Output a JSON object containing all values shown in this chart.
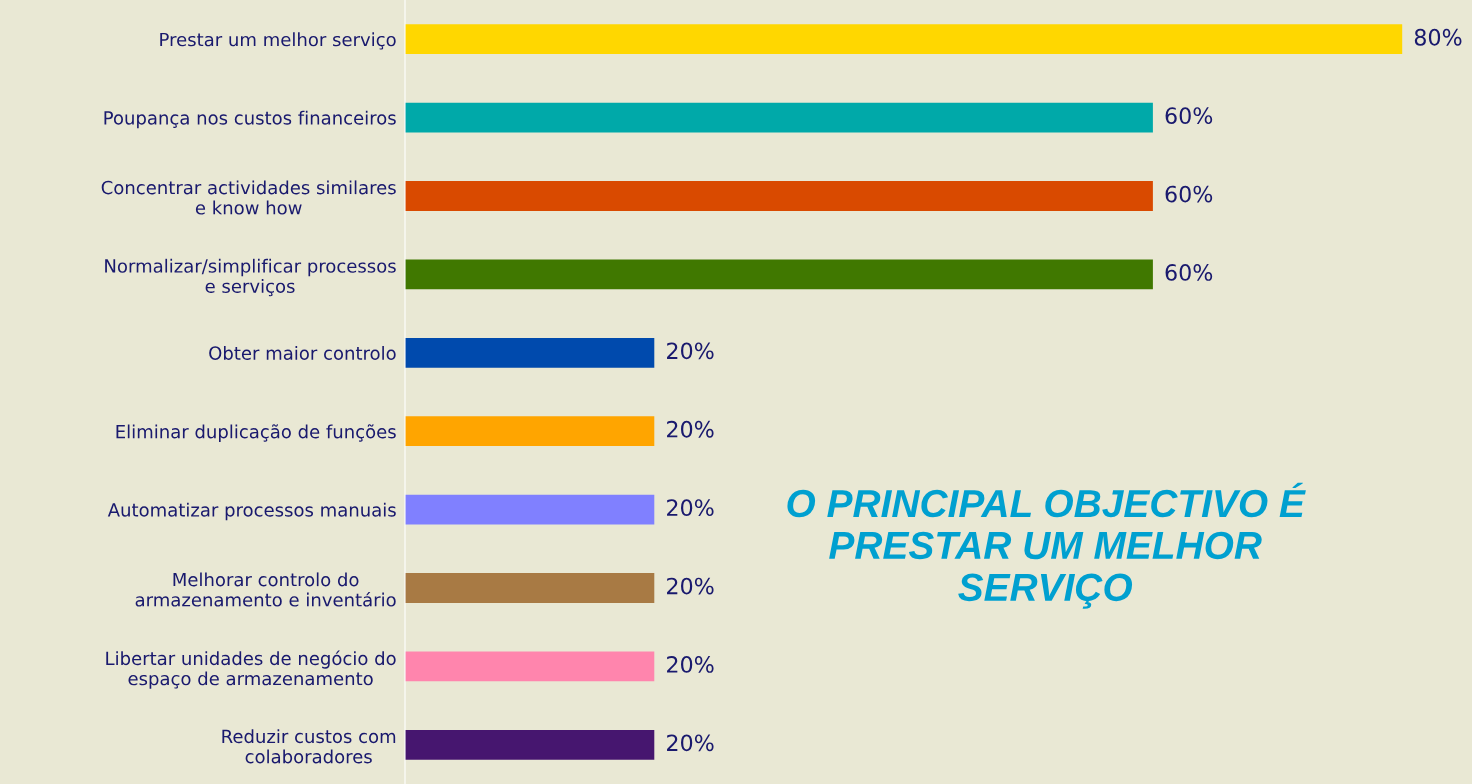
{
  "chart_data": {
    "type": "bar",
    "orientation": "horizontal",
    "categories": [
      "Prestar um melhor serviço",
      "Poupança nos custos financeiros",
      "Concentrar actividades similares\ne know how",
      "Normalizar/simplificar processos\ne serviços",
      "Obter maior controlo",
      "Eliminar duplicação de funções",
      "Automatizar processos manuais",
      "Melhorar controlo do\narmazenamento e inventário",
      "Libertar unidades de negócio do\nespaço de armazenamento",
      "Reduzir custos com\ncolaboradores"
    ],
    "values": [
      80,
      60,
      60,
      60,
      20,
      20,
      20,
      20,
      20,
      20
    ],
    "colors": [
      "#ffd700",
      "#00a9a9",
      "#d94a00",
      "#407800",
      "#004aad",
      "#ffa500",
      "#8080ff",
      "#a87a44",
      "#ff85ad",
      "#46166f"
    ],
    "value_labels": [
      "80%",
      "60%",
      "60%",
      "60%",
      "20%",
      "20%",
      "20%",
      "20%",
      "20%",
      "20%"
    ],
    "annotations": [
      "O PRINCIPAL OBJECTIVO É\nPRESTAR UM MELHOR\nSERVIÇO"
    ],
    "grid": false,
    "legend": false
  }
}
